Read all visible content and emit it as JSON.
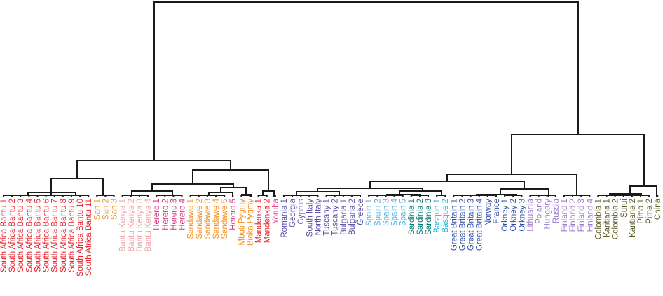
{
  "diagram": {
    "type": "dendrogram",
    "leaves": [
      {
        "label": "South Africa Bantu 1",
        "color": "#e8202a"
      },
      {
        "label": "South Africa Bantu 2",
        "color": "#e8202a"
      },
      {
        "label": "South Africa Bantu 3",
        "color": "#e8202a"
      },
      {
        "label": "South Africa Bantu 4",
        "color": "#e8202a"
      },
      {
        "label": "South Africa Bantu 5",
        "color": "#e8202a"
      },
      {
        "label": "South Africa Bantu 6",
        "color": "#e8202a"
      },
      {
        "label": "South Africa Bantu 7",
        "color": "#e8202a"
      },
      {
        "label": "South Africa Bantu 8",
        "color": "#e8202a"
      },
      {
        "label": "South Africa Bantu 9",
        "color": "#e8202a"
      },
      {
        "label": "South Africa Bantu 10",
        "color": "#e8202a"
      },
      {
        "label": "South Africa Bantu 11",
        "color": "#e8202a"
      },
      {
        "label": "San 1",
        "color": "#f39020"
      },
      {
        "label": "San 2",
        "color": "#f39020"
      },
      {
        "label": "San 3",
        "color": "#f39020"
      },
      {
        "label": "Bantu Kenya 1",
        "color": "#f4a0a8"
      },
      {
        "label": "Bantu Kenya 2",
        "color": "#f4a0a8"
      },
      {
        "label": "Bantu Kenya 3",
        "color": "#f4a0a8"
      },
      {
        "label": "Bantu Kenya 4",
        "color": "#f4a0a8"
      },
      {
        "label": "Herero 1",
        "color": "#d6307f"
      },
      {
        "label": "Herero 2",
        "color": "#d6307f"
      },
      {
        "label": "Herero 3",
        "color": "#d6307f"
      },
      {
        "label": "Herero 4",
        "color": "#d6307f"
      },
      {
        "label": "Sandawe 1",
        "color": "#f39020"
      },
      {
        "label": "Sandawe 2",
        "color": "#f39020"
      },
      {
        "label": "Sandawe 3",
        "color": "#f39020"
      },
      {
        "label": "Sandawe 4",
        "color": "#f39020"
      },
      {
        "label": "Sandawe 5",
        "color": "#f39020"
      },
      {
        "label": "Herero 5",
        "color": "#d6307f"
      },
      {
        "label": "Mbuti Pygmy",
        "color": "#f39020"
      },
      {
        "label": "Biaka Pygmy",
        "color": "#f39020"
      },
      {
        "label": "Mandenka 1",
        "color": "#e8202a"
      },
      {
        "label": "Mandenka 2",
        "color": "#e8202a"
      },
      {
        "label": "Yoruba",
        "color": "#e83a8c"
      },
      {
        "label": "Romania 1",
        "color": "#5a4fa8"
      },
      {
        "label": "Georgia",
        "color": "#5a4fa8"
      },
      {
        "label": "Cyprus",
        "color": "#5a4fa8"
      },
      {
        "label": "South Italy",
        "color": "#5a4fa8"
      },
      {
        "label": "North Italy",
        "color": "#5a4fa8"
      },
      {
        "label": "Tuscany 1",
        "color": "#5a4fa8"
      },
      {
        "label": "Tuscany 2",
        "color": "#5a4fa8"
      },
      {
        "label": "Bulgaria 1",
        "color": "#5a4fa8"
      },
      {
        "label": "Bulgaria 2",
        "color": "#5a4fa8"
      },
      {
        "label": "Greece",
        "color": "#5a4fa8"
      },
      {
        "label": "Spain 1",
        "color": "#4aaee0"
      },
      {
        "label": "Spain 2",
        "color": "#4aaee0"
      },
      {
        "label": "Spain 3",
        "color": "#4aaee0"
      },
      {
        "label": "Spain 4",
        "color": "#4aaee0"
      },
      {
        "label": "Spain 5",
        "color": "#4aaee0"
      },
      {
        "label": "Sardinia 1",
        "color": "#0a7a78"
      },
      {
        "label": "Sardinia 2",
        "color": "#0a7a78"
      },
      {
        "label": "Sardinia 3",
        "color": "#0a7a78"
      },
      {
        "label": "Basque 1",
        "color": "#18b8d8"
      },
      {
        "label": "Basque 2",
        "color": "#18b8d8"
      },
      {
        "label": "Great Britain 1",
        "color": "#3050a8"
      },
      {
        "label": "Great Britain 2",
        "color": "#3050a8"
      },
      {
        "label": "Great Britain 3",
        "color": "#3050a8"
      },
      {
        "label": "Great Britain 4",
        "color": "#3050a8"
      },
      {
        "label": "Norway",
        "color": "#3050a8"
      },
      {
        "label": "France",
        "color": "#3050a8"
      },
      {
        "label": "Orkney 1",
        "color": "#3050a8"
      },
      {
        "label": "Orkney 2",
        "color": "#3050a8"
      },
      {
        "label": "Orkney 3",
        "color": "#3050a8"
      },
      {
        "label": "Lithuania",
        "color": "#9a7ac8"
      },
      {
        "label": "Poland",
        "color": "#9a7ac8"
      },
      {
        "label": "Hungary",
        "color": "#9a7ac8"
      },
      {
        "label": "Russia",
        "color": "#9a7ac8"
      },
      {
        "label": "Finland 1",
        "color": "#9a7ac8"
      },
      {
        "label": "Finland 2",
        "color": "#9a7ac8"
      },
      {
        "label": "Finland 3",
        "color": "#9a7ac8"
      },
      {
        "label": "Finland 4",
        "color": "#9a7ac8"
      },
      {
        "label": "Colombia 1",
        "color": "#5a5a20"
      },
      {
        "label": "Karitiana 1",
        "color": "#5a5a20"
      },
      {
        "label": "Colombia 2",
        "color": "#5a5a20"
      },
      {
        "label": "Surui",
        "color": "#5a5a20"
      },
      {
        "label": "Karitiana 2",
        "color": "#5a5a20"
      },
      {
        "label": "Pima 1",
        "color": "#5a5a20"
      },
      {
        "label": "Pima 2",
        "color": "#5a5a20"
      },
      {
        "label": "China",
        "color": "#5a5a20"
      }
    ]
  }
}
